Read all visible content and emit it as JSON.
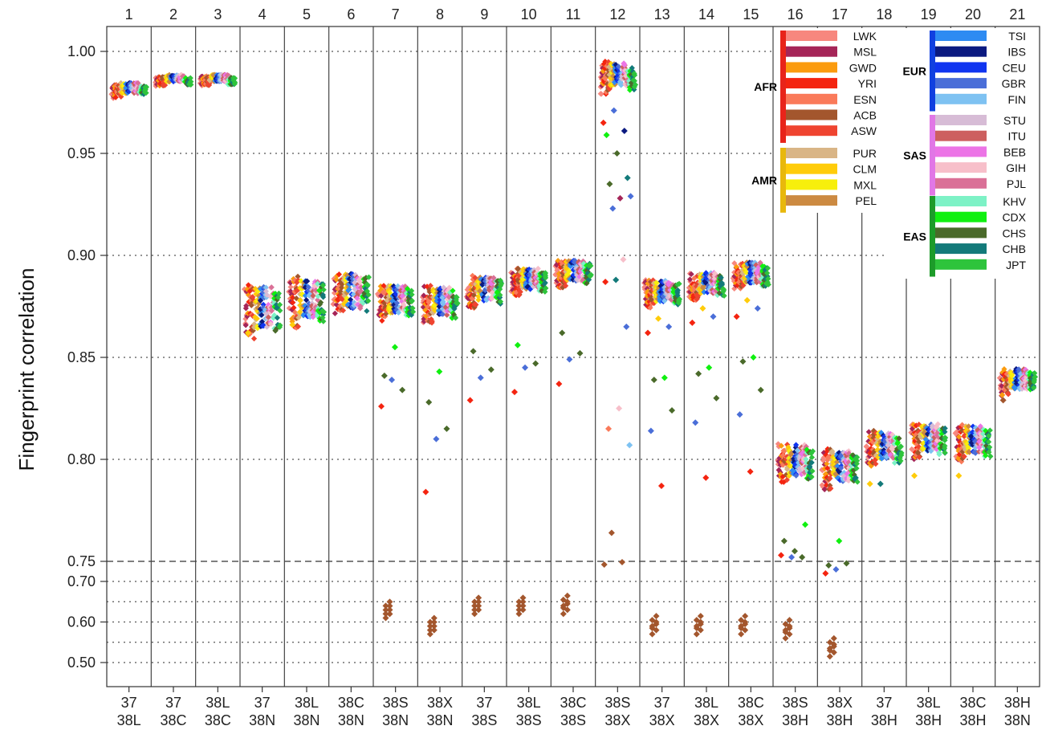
{
  "chart_data": {
    "type": "scatter",
    "title": "",
    "ylabel": "Fingerprint correlation",
    "xlabel": "",
    "y_ticks": [
      "1.00",
      "0.95",
      "0.90",
      "0.85",
      "0.80",
      "0.75",
      "0.70",
      "0.60",
      "0.50"
    ],
    "y_scale": "broken: linear 0.75–1.00 above dashed line at 0.75, compressed 0.50–0.70 below",
    "reference_line": 0.75,
    "grid": "dotted horizontal",
    "legend_position": "top-right",
    "panels": [
      {
        "num": "1",
        "pair": [
          "37",
          "38L"
        ],
        "center": 0.9815,
        "spread": 0.003,
        "outliers": []
      },
      {
        "num": "2",
        "pair": [
          "37",
          "38C"
        ],
        "center": 0.9863,
        "spread": 0.002,
        "outliers": []
      },
      {
        "num": "3",
        "pair": [
          "38L",
          "38C"
        ],
        "center": 0.9865,
        "spread": 0.002,
        "outliers": []
      },
      {
        "num": "4",
        "pair": [
          "37",
          "38N"
        ],
        "center": 0.874,
        "spread": 0.012,
        "outliers": [
          {
            "pop": "CLM",
            "y": 0.862
          }
        ]
      },
      {
        "num": "5",
        "pair": [
          "38L",
          "38N"
        ],
        "center": 0.878,
        "spread": 0.011,
        "outliers": [
          {
            "pop": "CLM",
            "y": 0.866
          }
        ]
      },
      {
        "num": "6",
        "pair": [
          "38C",
          "38N"
        ],
        "center": 0.882,
        "spread": 0.01,
        "outliers": []
      },
      {
        "num": "7",
        "pair": [
          "38S",
          "38N"
        ],
        "center": 0.878,
        "spread": 0.008,
        "outliers": [
          {
            "pop": "YRI",
            "y": 0.826
          },
          {
            "pop": "GBR",
            "y": 0.839
          },
          {
            "pop": "CHS",
            "y": 0.834
          },
          {
            "pop": "CHS",
            "y": 0.841
          },
          {
            "pop": "CDX",
            "y": 0.855
          },
          {
            "pop": "ACB",
            "y": 0.61
          },
          {
            "pop": "ACB",
            "y": 0.62
          }
        ]
      },
      {
        "num": "8",
        "pair": [
          "38X",
          "38N"
        ],
        "center": 0.877,
        "spread": 0.008,
        "outliers": [
          {
            "pop": "YRI",
            "y": 0.784
          },
          {
            "pop": "GBR",
            "y": 0.81
          },
          {
            "pop": "CHS",
            "y": 0.815
          },
          {
            "pop": "CHS",
            "y": 0.828
          },
          {
            "pop": "CDX",
            "y": 0.843
          },
          {
            "pop": "ACB",
            "y": 0.57
          },
          {
            "pop": "ACB",
            "y": 0.58
          }
        ]
      },
      {
        "num": "9",
        "pair": [
          "37",
          "38S"
        ],
        "center": 0.883,
        "spread": 0.007,
        "outliers": [
          {
            "pop": "YRI",
            "y": 0.829
          },
          {
            "pop": "GBR",
            "y": 0.84
          },
          {
            "pop": "CHS",
            "y": 0.844
          },
          {
            "pop": "CHS",
            "y": 0.853
          },
          {
            "pop": "ACB",
            "y": 0.62
          },
          {
            "pop": "ACB",
            "y": 0.63
          }
        ]
      },
      {
        "num": "10",
        "pair": [
          "38L",
          "38S"
        ],
        "center": 0.888,
        "spread": 0.006,
        "outliers": [
          {
            "pop": "YRI",
            "y": 0.833
          },
          {
            "pop": "GBR",
            "y": 0.845
          },
          {
            "pop": "CHS",
            "y": 0.847
          },
          {
            "pop": "CDX",
            "y": 0.856
          },
          {
            "pop": "ACB",
            "y": 0.62
          },
          {
            "pop": "ACB",
            "y": 0.63
          }
        ]
      },
      {
        "num": "11",
        "pair": [
          "38C",
          "38S"
        ],
        "center": 0.892,
        "spread": 0.006,
        "outliers": [
          {
            "pop": "YRI",
            "y": 0.837
          },
          {
            "pop": "GBR",
            "y": 0.849
          },
          {
            "pop": "CHS",
            "y": 0.852
          },
          {
            "pop": "CHS",
            "y": 0.862
          },
          {
            "pop": "ACB",
            "y": 0.62
          },
          {
            "pop": "ACB",
            "y": 0.635
          }
        ]
      },
      {
        "num": "12",
        "pair": [
          "38S",
          "38X"
        ],
        "center": 0.988,
        "spread": 0.007,
        "outliers": [
          {
            "pop": "YRI",
            "y": 0.965
          },
          {
            "pop": "GBR",
            "y": 0.971
          },
          {
            "pop": "IBS",
            "y": 0.961
          },
          {
            "pop": "CDX",
            "y": 0.959
          },
          {
            "pop": "CHS",
            "y": 0.95
          },
          {
            "pop": "CHB",
            "y": 0.938
          },
          {
            "pop": "CHS",
            "y": 0.935
          },
          {
            "pop": "MSL",
            "y": 0.928
          },
          {
            "pop": "GBR",
            "y": 0.929
          },
          {
            "pop": "GBR",
            "y": 0.923
          },
          {
            "pop": "GIH",
            "y": 0.898
          },
          {
            "pop": "YRI",
            "y": 0.887
          },
          {
            "pop": "CHB",
            "y": 0.888
          },
          {
            "pop": "GBR",
            "y": 0.865
          },
          {
            "pop": "ESN",
            "y": 0.815
          },
          {
            "pop": "GIH",
            "y": 0.825
          },
          {
            "pop": "FIN",
            "y": 0.807
          },
          {
            "pop": "ACB",
            "y": 0.764
          },
          {
            "pop": "ACB",
            "y": 0.748
          },
          {
            "pop": "ACB",
            "y": 0.742
          }
        ]
      },
      {
        "num": "13",
        "pair": [
          "37",
          "38X"
        ],
        "center": 0.882,
        "spread": 0.006,
        "outliers": [
          {
            "pop": "YRI",
            "y": 0.862
          },
          {
            "pop": "CLM",
            "y": 0.869
          },
          {
            "pop": "GBR",
            "y": 0.865
          },
          {
            "pop": "GBR",
            "y": 0.814
          },
          {
            "pop": "YRI",
            "y": 0.787
          },
          {
            "pop": "CHS",
            "y": 0.824
          },
          {
            "pop": "CHS",
            "y": 0.839
          },
          {
            "pop": "CDX",
            "y": 0.84
          },
          {
            "pop": "ACB",
            "y": 0.57
          },
          {
            "pop": "ACB",
            "y": 0.585
          }
        ]
      },
      {
        "num": "14",
        "pair": [
          "38L",
          "38X"
        ],
        "center": 0.886,
        "spread": 0.006,
        "outliers": [
          {
            "pop": "YRI",
            "y": 0.867
          },
          {
            "pop": "CLM",
            "y": 0.874
          },
          {
            "pop": "GBR",
            "y": 0.87
          },
          {
            "pop": "GBR",
            "y": 0.818
          },
          {
            "pop": "YRI",
            "y": 0.791
          },
          {
            "pop": "CHS",
            "y": 0.83
          },
          {
            "pop": "CHS",
            "y": 0.842
          },
          {
            "pop": "CDX",
            "y": 0.845
          },
          {
            "pop": "ACB",
            "y": 0.57
          },
          {
            "pop": "ACB",
            "y": 0.585
          }
        ]
      },
      {
        "num": "15",
        "pair": [
          "38C",
          "38X"
        ],
        "center": 0.891,
        "spread": 0.006,
        "outliers": [
          {
            "pop": "YRI",
            "y": 0.87
          },
          {
            "pop": "CLM",
            "y": 0.878
          },
          {
            "pop": "GBR",
            "y": 0.874
          },
          {
            "pop": "GBR",
            "y": 0.822
          },
          {
            "pop": "YRI",
            "y": 0.794
          },
          {
            "pop": "CHS",
            "y": 0.834
          },
          {
            "pop": "CHS",
            "y": 0.848
          },
          {
            "pop": "CDX",
            "y": 0.85
          },
          {
            "pop": "ACB",
            "y": 0.57
          },
          {
            "pop": "ACB",
            "y": 0.585
          }
        ]
      },
      {
        "num": "16",
        "pair": [
          "38S",
          "38H"
        ],
        "center": 0.799,
        "spread": 0.009,
        "outliers": [
          {
            "pop": "YRI",
            "y": 0.753
          },
          {
            "pop": "GBR",
            "y": 0.752
          },
          {
            "pop": "CHS",
            "y": 0.752
          },
          {
            "pop": "CHS",
            "y": 0.76
          },
          {
            "pop": "CHS",
            "y": 0.755
          },
          {
            "pop": "CDX",
            "y": 0.768
          },
          {
            "pop": "ACB",
            "y": 0.56
          },
          {
            "pop": "ACB",
            "y": 0.575
          }
        ]
      },
      {
        "num": "17",
        "pair": [
          "38X",
          "38H"
        ],
        "center": 0.796,
        "spread": 0.009,
        "outliers": [
          {
            "pop": "YRI",
            "y": 0.72
          },
          {
            "pop": "GBR",
            "y": 0.73
          },
          {
            "pop": "CHS",
            "y": 0.745
          },
          {
            "pop": "CHS",
            "y": 0.74
          },
          {
            "pop": "CDX",
            "y": 0.76
          },
          {
            "pop": "ACB",
            "y": 0.515
          },
          {
            "pop": "ACB",
            "y": 0.53
          }
        ]
      },
      {
        "num": "18",
        "pair": [
          "37",
          "38H"
        ],
        "center": 0.806,
        "spread": 0.008,
        "outliers": [
          {
            "pop": "CLM",
            "y": 0.788
          },
          {
            "pop": "CHB",
            "y": 0.788
          }
        ]
      },
      {
        "num": "19",
        "pair": [
          "38L",
          "38H"
        ],
        "center": 0.81,
        "spread": 0.008,
        "outliers": [
          {
            "pop": "CLM",
            "y": 0.792
          }
        ]
      },
      {
        "num": "20",
        "pair": [
          "38C",
          "38H"
        ],
        "center": 0.809,
        "spread": 0.008,
        "outliers": [
          {
            "pop": "CLM",
            "y": 0.792
          }
        ]
      },
      {
        "num": "21",
        "pair": [
          "38H",
          "38N"
        ],
        "center": 0.839,
        "spread": 0.006,
        "outliers": [
          {
            "pop": "ACB",
            "y": 0.829
          }
        ]
      }
    ],
    "legend": [
      {
        "group": "AFR",
        "color": "#e8241a",
        "pops": [
          {
            "name": "LWK",
            "color": "#f7877e"
          },
          {
            "name": "MSL",
            "color": "#a52558"
          },
          {
            "name": "GWD",
            "color": "#fb9b0e"
          },
          {
            "name": "YRI",
            "color": "#f42410"
          },
          {
            "name": "ESN",
            "color": "#fa7a5a"
          },
          {
            "name": "ACB",
            "color": "#a3562d"
          },
          {
            "name": "ASW",
            "color": "#ef4430"
          }
        ]
      },
      {
        "group": "AMR",
        "color": "#e8b80c",
        "pops": [
          {
            "name": "PUR",
            "color": "#d9b586"
          },
          {
            "name": "CLM",
            "color": "#ffcc0a"
          },
          {
            "name": "MXL",
            "color": "#f7ef0c"
          },
          {
            "name": "PEL",
            "color": "#cc8a42"
          }
        ]
      },
      {
        "group": "EUR",
        "color": "#1140e0",
        "pops": [
          {
            "name": "TSI",
            "color": "#2e8bf2"
          },
          {
            "name": "IBS",
            "color": "#0b1a80"
          },
          {
            "name": "CEU",
            "color": "#1035f0"
          },
          {
            "name": "GBR",
            "color": "#4a6ed8"
          },
          {
            "name": "FIN",
            "color": "#7ec2f2"
          }
        ]
      },
      {
        "group": "SAS",
        "color": "#e177e6",
        "pops": [
          {
            "name": "STU",
            "color": "#d7bcd6"
          },
          {
            "name": "ITU",
            "color": "#cd5f5f"
          },
          {
            "name": "BEB",
            "color": "#ec74e6"
          },
          {
            "name": "GIH",
            "color": "#f7bfca"
          },
          {
            "name": "PJL",
            "color": "#da7097"
          }
        ]
      },
      {
        "group": "EAS",
        "color": "#1d9b2a",
        "pops": [
          {
            "name": "KHV",
            "color": "#7df2c6"
          },
          {
            "name": "CDX",
            "color": "#10f010"
          },
          {
            "name": "CHS",
            "color": "#4a6a2a"
          },
          {
            "name": "CHB",
            "color": "#137a7a"
          },
          {
            "name": "JPT",
            "color": "#2ec43c"
          }
        ]
      }
    ]
  }
}
